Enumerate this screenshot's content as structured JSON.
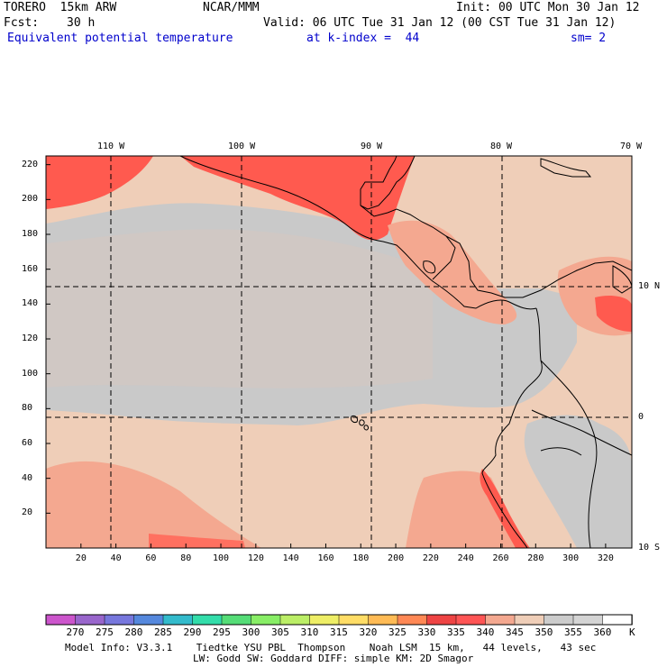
{
  "header": {
    "model": "TORERO  15km ARW",
    "center": "NCAR/MMM",
    "init": "Init: 00 UTC Mon 30 Jan 12",
    "fcst_label": "Fcst:",
    "fcst_value": "30 h",
    "valid": "Valid: 06 UTC Tue 31 Jan 12 (00 CST Tue 31 Jan 12)",
    "field": "Equivalent potential temperature",
    "level": "at k-index =  44",
    "smooth": "sm= 2"
  },
  "map": {
    "lon_labels": [
      "110 W",
      "100 W",
      "90 W",
      "80 W",
      "70 W"
    ],
    "lat_labels": [
      "10 N",
      "0",
      "10 S"
    ],
    "y_ticks": [
      "220",
      "200",
      "180",
      "160",
      "140",
      "120",
      "100",
      "80",
      "60",
      "40",
      "20"
    ],
    "x_ticks": [
      "20",
      "40",
      "60",
      "80",
      "100",
      "120",
      "140",
      "160",
      "180",
      "200",
      "220",
      "240",
      "260",
      "280",
      "300",
      "320"
    ],
    "domain_x": [
      0,
      335
    ],
    "domain_y": [
      0,
      225
    ]
  },
  "colorbar": {
    "labels": [
      "270",
      "275",
      "280",
      "285",
      "290",
      "295",
      "300",
      "305",
      "310",
      "315",
      "320",
      "325",
      "330",
      "335",
      "340",
      "345",
      "350",
      "355",
      "360"
    ],
    "unit": "K",
    "colors": [
      "#cc55cc",
      "#9966cc",
      "#7777dd",
      "#5588dd",
      "#33bbcc",
      "#33ddaa",
      "#55dd77",
      "#88ee66",
      "#bbee66",
      "#eeee66",
      "#ffdd66",
      "#ffbb55",
      "#ff8855",
      "#ee4444",
      "#ff5555",
      "#f4a890",
      "#efceb8",
      "#cccccc",
      "#d4d4d4",
      "#ffffff"
    ]
  },
  "footer": {
    "line1": "Model Info: V3.3.1    Tiedtke YSU PBL  Thompson    Noah LSM  15 km,   44 levels,   43 sec",
    "line2": "LW: Godd SW: Goddard DIFF: simple KM: 2D Smagor"
  }
}
